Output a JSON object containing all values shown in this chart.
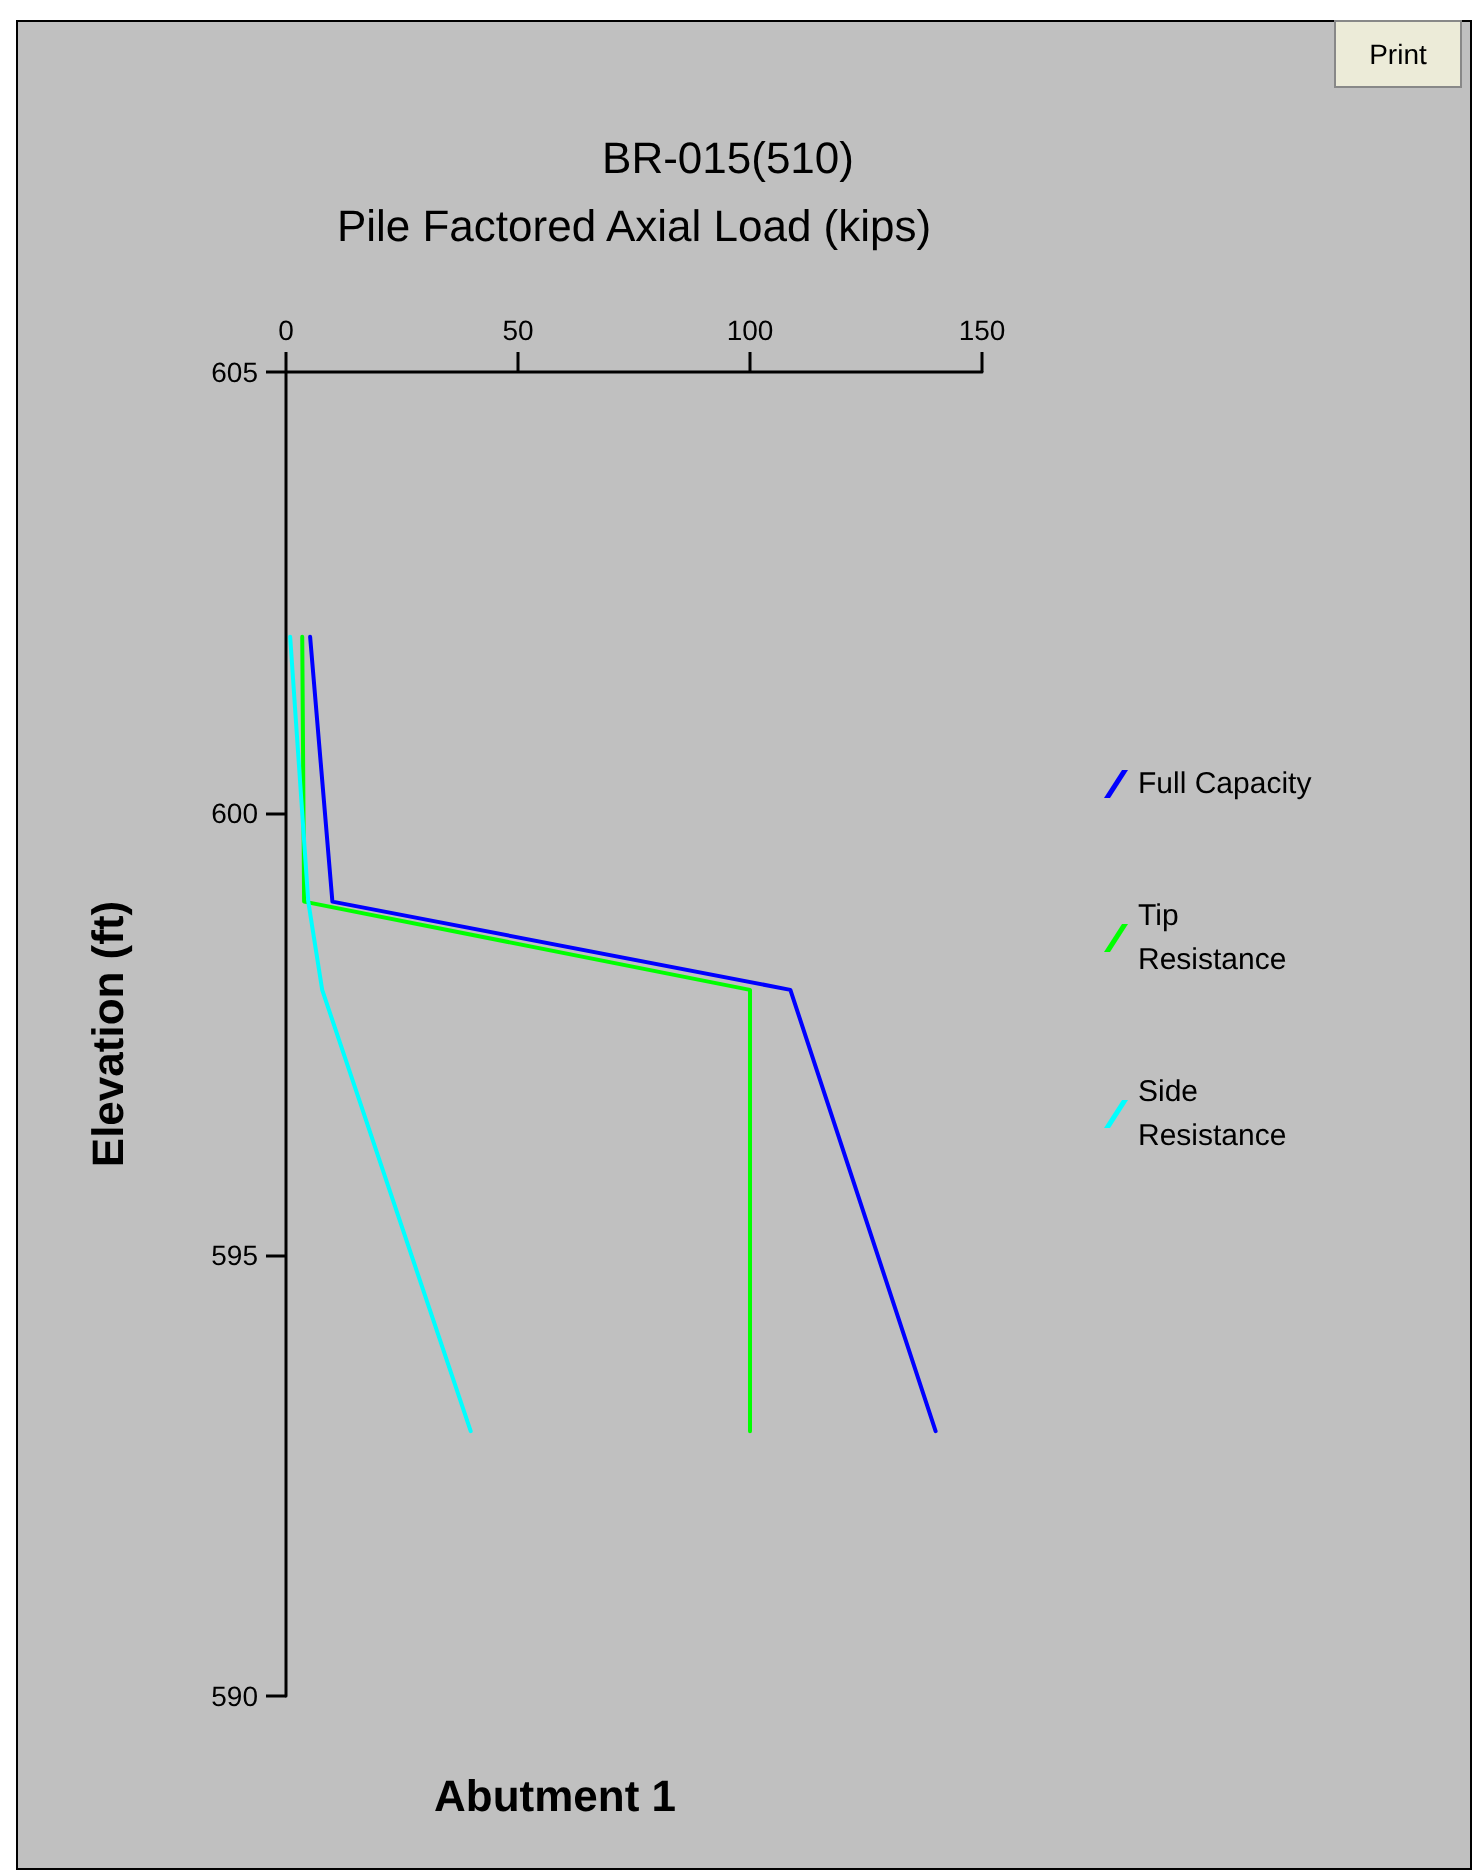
{
  "chart_data": {
    "type": "line",
    "title": "BR-015(510)",
    "xlabel": "Pile Factored Axial Load (kips)",
    "ylabel": "Elevation (ft)",
    "annotations": [
      "Abutment 1",
      "Print"
    ],
    "xlim": [
      0,
      150
    ],
    "xticks": [
      0,
      50,
      100,
      150
    ],
    "ylim": [
      590,
      605
    ],
    "yticks": [
      590,
      595,
      600,
      605
    ],
    "grid": false,
    "legend": "right",
    "marker": "none",
    "line_style": "solid",
    "series": [
      {
        "name": "Full Capacity",
        "color": "#0000ff",
        "x": [
          5.2,
          10,
          108.7,
          140
        ],
        "values": [
          602,
          599,
          598,
          593
        ]
      },
      {
        "name": "Tip Resistance",
        "color": "#00ff00",
        "x": [
          3.5,
          3.9,
          100,
          100
        ],
        "values": [
          602,
          599,
          598,
          593
        ]
      },
      {
        "name": "Side Resistance",
        "color": "#00ffff",
        "x": [
          0.9,
          4.8,
          7.8,
          39.8
        ],
        "values": [
          602,
          599,
          598,
          593
        ]
      }
    ]
  }
}
